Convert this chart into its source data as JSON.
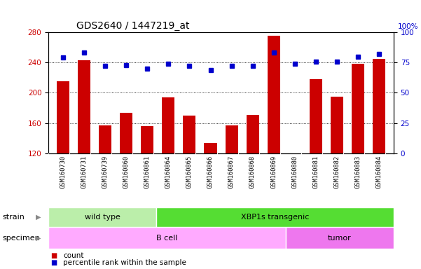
{
  "title": "GDS2640 / 1447219_at",
  "samples": [
    "GSM160730",
    "GSM160731",
    "GSM160739",
    "GSM160860",
    "GSM160861",
    "GSM160864",
    "GSM160865",
    "GSM160866",
    "GSM160867",
    "GSM160868",
    "GSM160869",
    "GSM160880",
    "GSM160881",
    "GSM160882",
    "GSM160883",
    "GSM160884"
  ],
  "counts": [
    215,
    243,
    157,
    174,
    156,
    194,
    170,
    134,
    157,
    171,
    275,
    120,
    218,
    195,
    238,
    245
  ],
  "percentiles": [
    79,
    83,
    72,
    73,
    70,
    74,
    72,
    69,
    72,
    72,
    83,
    74,
    76,
    76,
    80,
    82
  ],
  "ylim_left": [
    120,
    280
  ],
  "ylim_right": [
    0,
    100
  ],
  "yticks_left": [
    120,
    160,
    200,
    240,
    280
  ],
  "yticks_right": [
    0,
    25,
    50,
    75,
    100
  ],
  "bar_color": "#cc0000",
  "dot_color": "#0000cc",
  "strain_groups": [
    {
      "label": "wild type",
      "start": 0,
      "end": 5,
      "color": "#bbeeaa"
    },
    {
      "label": "XBP1s transgenic",
      "start": 5,
      "end": 16,
      "color": "#55dd33"
    }
  ],
  "specimen_groups": [
    {
      "label": "B cell",
      "start": 0,
      "end": 11,
      "color": "#ffaaff"
    },
    {
      "label": "tumor",
      "start": 11,
      "end": 16,
      "color": "#ee77ee"
    }
  ],
  "legend_count_label": "count",
  "legend_percentile_label": "percentile rank within the sample",
  "strain_label": "strain",
  "specimen_label": "specimen",
  "tick_bg_color": "#cccccc",
  "plot_bg_color": "#ffffff",
  "fig_bg_color": "#ffffff"
}
